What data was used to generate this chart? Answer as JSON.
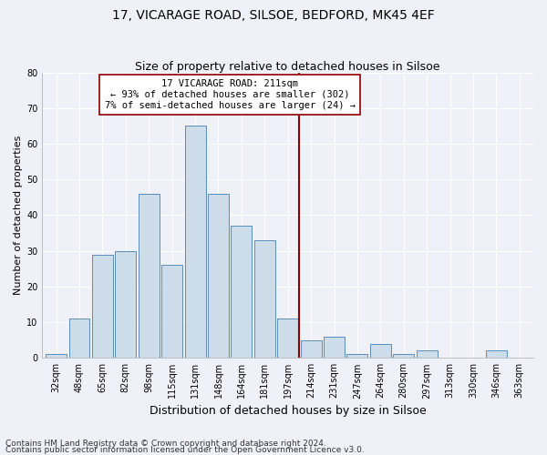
{
  "title": "17, VICARAGE ROAD, SILSOE, BEDFORD, MK45 4EF",
  "subtitle": "Size of property relative to detached houses in Silsoe",
  "xlabel": "Distribution of detached houses by size in Silsoe",
  "ylabel": "Number of detached properties",
  "categories": [
    "32sqm",
    "48sqm",
    "65sqm",
    "82sqm",
    "98sqm",
    "115sqm",
    "131sqm",
    "148sqm",
    "164sqm",
    "181sqm",
    "197sqm",
    "214sqm",
    "231sqm",
    "247sqm",
    "264sqm",
    "280sqm",
    "297sqm",
    "313sqm",
    "330sqm",
    "346sqm",
    "363sqm"
  ],
  "values": [
    1,
    11,
    29,
    30,
    46,
    26,
    65,
    46,
    37,
    33,
    11,
    5,
    6,
    1,
    4,
    1,
    2,
    0,
    0,
    2,
    0
  ],
  "bar_color": "#ccdce8",
  "bar_edgecolor": "#5b8db8",
  "vline_color": "#8b0000",
  "annotation_text": "17 VICARAGE ROAD: 211sqm\n← 93% of detached houses are smaller (302)\n7% of semi-detached houses are larger (24) →",
  "annotation_box_color": "#ffffff",
  "annotation_box_edgecolor": "#8b0000",
  "ylim": [
    0,
    80
  ],
  "yticks": [
    0,
    10,
    20,
    30,
    40,
    50,
    60,
    70,
    80
  ],
  "footer1": "Contains HM Land Registry data © Crown copyright and database right 2024.",
  "footer2": "Contains public sector information licensed under the Open Government Licence v3.0.",
  "background_color": "#eef2f8",
  "grid_color": "#ffffff",
  "title_fontsize": 10,
  "subtitle_fontsize": 9,
  "xlabel_fontsize": 9,
  "ylabel_fontsize": 8,
  "tick_fontsize": 7,
  "footer_fontsize": 6.5
}
